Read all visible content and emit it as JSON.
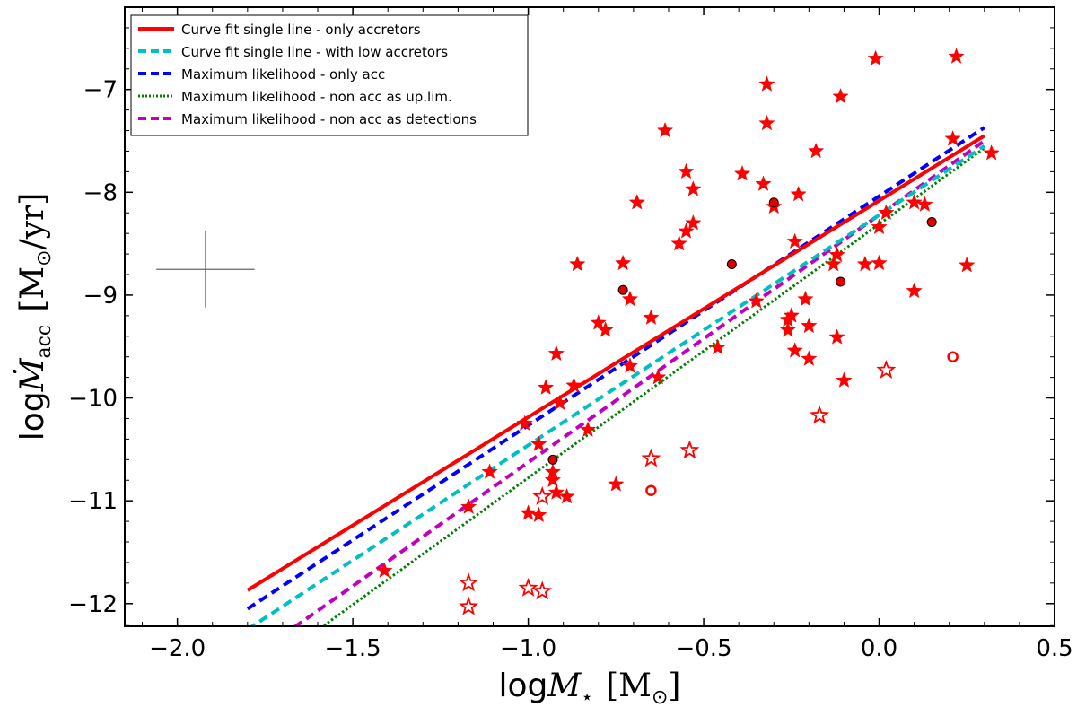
{
  "chart_data": {
    "type": "scatter",
    "xlabel": "log M_⋆ [M_⊙]",
    "ylabel": "log Ṁ_acc [M_⊙/yr]",
    "xlabel_parts": {
      "log": "log",
      "sym": "M",
      "sub": "⋆",
      "unit": "[M",
      "unit_sub": "⊙",
      "unit_end": "]"
    },
    "ylabel_parts": {
      "log": "log",
      "sym": "Ṁ",
      "sub": "acc",
      "unit": "[M",
      "unit_sub": "⊙",
      "unit_end": "/yr]"
    },
    "xlim": [
      -2.15,
      0.5
    ],
    "ylim": [
      -12.22,
      -6.2
    ],
    "xticks": [
      -2.0,
      -1.5,
      -1.0,
      -0.5,
      0.0,
      0.5
    ],
    "xtick_labels": [
      "−2.0",
      "−1.5",
      "−1.0",
      "−0.5",
      "0.0",
      "0.5"
    ],
    "yticks": [
      -12,
      -11,
      -10,
      -9,
      -8,
      -7
    ],
    "ytick_labels": [
      "−12",
      "−11",
      "−10",
      "−9",
      "−8",
      "−7"
    ],
    "legend_position": "top-left",
    "series": [
      {
        "name": "Curve fit single line - only accretors",
        "kind": "line",
        "color": "#ff0000",
        "style": "solid",
        "x": [
          -1.8,
          0.3
        ],
        "y": [
          -11.87,
          -7.45
        ]
      },
      {
        "name": "Curve fit single line - with low accretors",
        "kind": "line",
        "color": "#00bfbf",
        "style": "dashed",
        "x": [
          -1.8,
          0.3
        ],
        "y": [
          -12.25,
          -7.55
        ]
      },
      {
        "name": "Maximum likelihood - only acc",
        "kind": "line",
        "color": "#0000ff",
        "style": "dashed",
        "x": [
          -1.8,
          0.3
        ],
        "y": [
          -12.05,
          -7.37
        ]
      },
      {
        "name": "Maximum likelihood - non acc as up.lim.",
        "kind": "line",
        "color": "#007f00",
        "style": "dotted",
        "x": [
          -1.8,
          0.3
        ],
        "y": [
          -12.75,
          -7.57
        ]
      },
      {
        "name": "Maximum likelihood - non acc as detections",
        "kind": "line",
        "color": "#bf00bf",
        "style": "dashed",
        "x": [
          -1.8,
          0.3
        ],
        "y": [
          -12.55,
          -7.5
        ]
      }
    ],
    "error_bar": {
      "x": -1.92,
      "y": -8.75,
      "xerr": 0.14,
      "yerr": 0.37
    },
    "accretors": [
      [
        -0.01,
        -6.7
      ],
      [
        0.22,
        -6.68
      ],
      [
        -0.32,
        -6.95
      ],
      [
        -0.11,
        -7.07
      ],
      [
        -0.32,
        -7.33
      ],
      [
        -0.61,
        -7.4
      ],
      [
        0.21,
        -7.48
      ],
      [
        -0.18,
        -7.6
      ],
      [
        0.32,
        -7.62
      ],
      [
        -0.55,
        -7.8
      ],
      [
        -0.39,
        -7.82
      ],
      [
        -0.33,
        -7.92
      ],
      [
        -0.53,
        -7.97
      ],
      [
        -0.23,
        -8.02
      ],
      [
        -0.3,
        -8.14
      ],
      [
        -0.69,
        -8.1
      ],
      [
        0.1,
        -8.1
      ],
      [
        0.13,
        -8.12
      ],
      [
        0.02,
        -8.2
      ],
      [
        -0.53,
        -8.3
      ],
      [
        -0.55,
        -8.38
      ],
      [
        -0.57,
        -8.5
      ],
      [
        0.0,
        -8.34
      ],
      [
        -0.24,
        -8.48
      ],
      [
        -0.73,
        -8.69
      ],
      [
        -0.86,
        -8.7
      ],
      [
        0.0,
        -8.69
      ],
      [
        -0.04,
        -8.7
      ],
      [
        0.25,
        -8.71
      ],
      [
        -0.13,
        -8.7
      ],
      [
        -0.12,
        -8.61
      ],
      [
        -0.71,
        -9.04
      ],
      [
        0.1,
        -8.96
      ],
      [
        -0.21,
        -9.04
      ],
      [
        -0.65,
        -9.22
      ],
      [
        -0.35,
        -9.06
      ],
      [
        -0.25,
        -9.2
      ],
      [
        -0.26,
        -9.24
      ],
      [
        -0.2,
        -9.3
      ],
      [
        -0.8,
        -9.27
      ],
      [
        -0.78,
        -9.34
      ],
      [
        -0.12,
        -9.41
      ],
      [
        -0.26,
        -9.34
      ],
      [
        -0.92,
        -9.57
      ],
      [
        -0.46,
        -9.51
      ],
      [
        -0.24,
        -9.54
      ],
      [
        -0.2,
        -9.62
      ],
      [
        -0.71,
        -9.69
      ],
      [
        -0.63,
        -9.8
      ],
      [
        -0.1,
        -9.83
      ],
      [
        -0.95,
        -9.9
      ],
      [
        -0.91,
        -10.05
      ],
      [
        -0.87,
        -9.88
      ],
      [
        -0.83,
        -10.31
      ],
      [
        -1.01,
        -10.25
      ],
      [
        -0.97,
        -10.45
      ],
      [
        -1.11,
        -10.72
      ],
      [
        -0.93,
        -10.72
      ],
      [
        -0.93,
        -10.8
      ],
      [
        -0.92,
        -10.92
      ],
      [
        -0.89,
        -10.96
      ],
      [
        -0.75,
        -10.84
      ],
      [
        -1.17,
        -11.06
      ],
      [
        -0.97,
        -11.14
      ],
      [
        -1.0,
        -11.12
      ],
      [
        -1.41,
        -11.68
      ]
    ],
    "non_accretors": [
      [
        0.02,
        -9.73
      ],
      [
        -0.17,
        -10.17
      ],
      [
        -0.54,
        -10.51
      ],
      [
        -0.65,
        -10.59
      ],
      [
        -0.96,
        -10.96
      ],
      [
        -1.17,
        -11.8
      ],
      [
        -1.17,
        -12.03
      ],
      [
        -1.0,
        -11.85
      ],
      [
        -0.96,
        -11.88
      ]
    ],
    "accretor_circles": [
      [
        -0.3,
        -8.1
      ],
      [
        0.15,
        -8.29
      ],
      [
        -0.42,
        -8.7
      ],
      [
        -0.73,
        -8.95
      ],
      [
        -0.11,
        -8.87
      ],
      [
        -0.93,
        -10.6
      ]
    ],
    "non_accretor_circles": [
      [
        0.21,
        -9.6
      ],
      [
        -0.65,
        -10.9
      ]
    ]
  }
}
